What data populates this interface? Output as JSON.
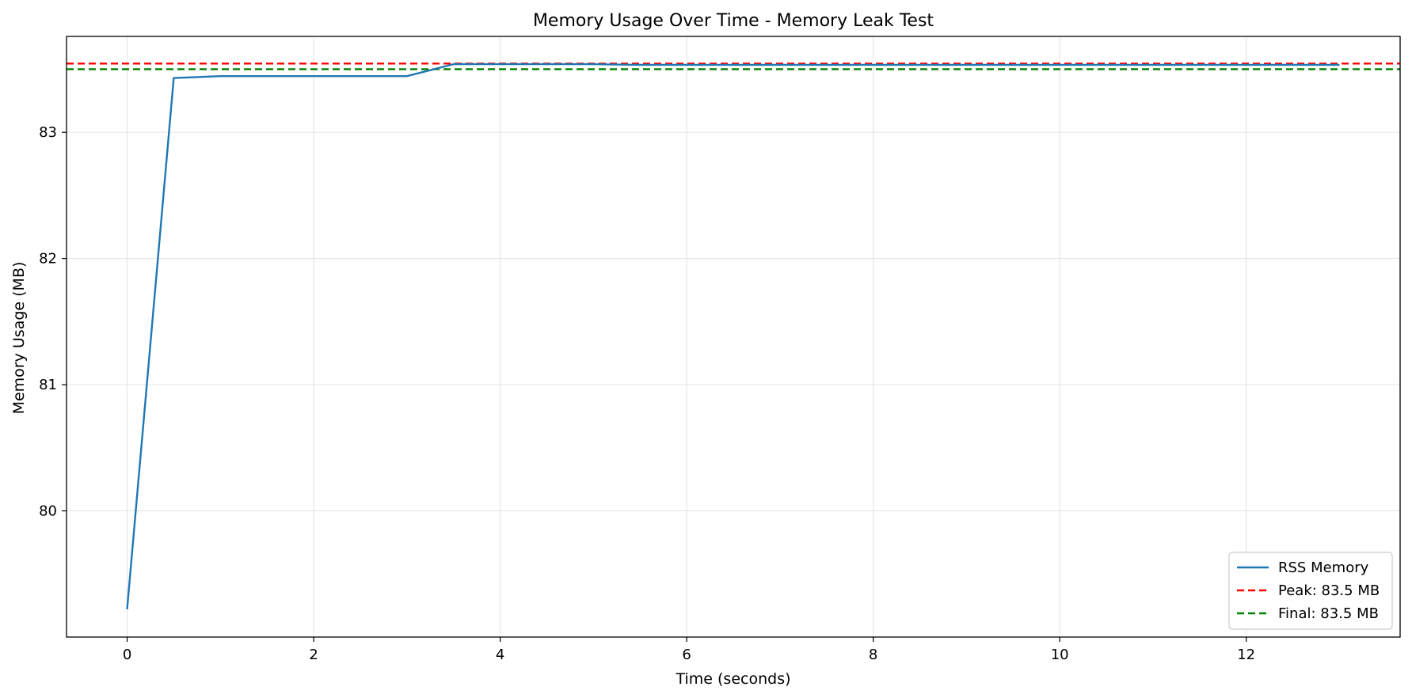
{
  "chart_data": {
    "type": "line",
    "title": "Memory Usage Over Time - Memory Leak Test",
    "xlabel": "Time (seconds)",
    "ylabel": "Memory Usage (MB)",
    "xlim": [
      -0.65,
      13.65
    ],
    "ylim": [
      79.0,
      83.76
    ],
    "xticks": [
      0,
      2,
      4,
      6,
      8,
      10,
      12
    ],
    "yticks": [
      80,
      81,
      82,
      83
    ],
    "grid": true,
    "legend_position": "lower-right",
    "series": [
      {
        "name": "RSS Memory",
        "style": "solid",
        "color": "#1f77b4",
        "x": [
          0,
          0.5,
          1.0,
          1.5,
          2.0,
          2.5,
          3.0,
          3.5,
          4.0,
          4.5,
          5.0,
          5.5,
          6.0,
          6.5,
          7.0,
          7.5,
          8.0,
          8.5,
          9.0,
          9.5,
          10.0,
          10.5,
          11.0,
          11.5,
          12.0,
          12.5,
          13.0
        ],
        "y": [
          79.22,
          83.43,
          83.445,
          83.445,
          83.445,
          83.445,
          83.445,
          83.54,
          83.54,
          83.54,
          83.54,
          83.535,
          83.535,
          83.535,
          83.535,
          83.535,
          83.535,
          83.535,
          83.535,
          83.535,
          83.535,
          83.535,
          83.535,
          83.535,
          83.535,
          83.535,
          83.535
        ]
      }
    ],
    "reference_lines": [
      {
        "name": "Peak: 83.5 MB",
        "y": 83.545,
        "style": "dashed",
        "color": "#ff0000"
      },
      {
        "name": "Final: 83.5 MB",
        "y": 83.5,
        "style": "dashed",
        "color": "#008000"
      }
    ]
  }
}
